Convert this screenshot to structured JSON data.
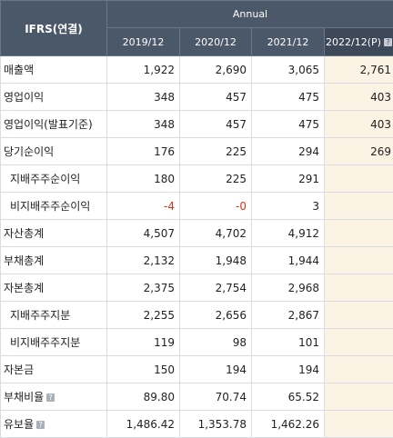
{
  "header": {
    "corner": "IFRS(연결)",
    "group": "Annual",
    "years": [
      "2019/12",
      "2020/12",
      "2021/12",
      "2022/12(P)"
    ]
  },
  "rows": [
    {
      "label": "매출액",
      "values": [
        "1,922",
        "2,690",
        "3,065",
        "2,761"
      ]
    },
    {
      "label": "영업이익",
      "values": [
        "348",
        "457",
        "475",
        "403"
      ]
    },
    {
      "label": "영업이익(발표기준)",
      "values": [
        "348",
        "457",
        "475",
        "403"
      ]
    },
    {
      "label": "당기순이익",
      "values": [
        "176",
        "225",
        "294",
        "269"
      ]
    },
    {
      "label": "지배주주순이익",
      "values": [
        "180",
        "225",
        "291",
        ""
      ]
    },
    {
      "label": "비지배주주순이익",
      "values": [
        "-4",
        "-0",
        "3",
        ""
      ]
    },
    {
      "label": "자산총계",
      "values": [
        "4,507",
        "4,702",
        "4,912",
        ""
      ]
    },
    {
      "label": "부채총계",
      "values": [
        "2,132",
        "1,948",
        "1,944",
        ""
      ]
    },
    {
      "label": "자본총계",
      "values": [
        "2,375",
        "2,754",
        "2,968",
        ""
      ]
    },
    {
      "label": "지배주주지분",
      "values": [
        "2,255",
        "2,656",
        "2,867",
        ""
      ]
    },
    {
      "label": "비지배주주지분",
      "values": [
        "119",
        "98",
        "101",
        ""
      ]
    },
    {
      "label": "자본금",
      "values": [
        "150",
        "194",
        "194",
        ""
      ]
    },
    {
      "label": "부채비율",
      "values": [
        "89.80",
        "70.74",
        "65.52",
        ""
      ]
    },
    {
      "label": "유보율",
      "values": [
        "1,486.42",
        "1,353.78",
        "1,462.26",
        ""
      ]
    }
  ],
  "colors": {
    "header_bg": "#4b5869",
    "estimate_bg": "#fbf3e3",
    "negative": "#e0301e"
  },
  "icons": {
    "help": "help-icon"
  }
}
